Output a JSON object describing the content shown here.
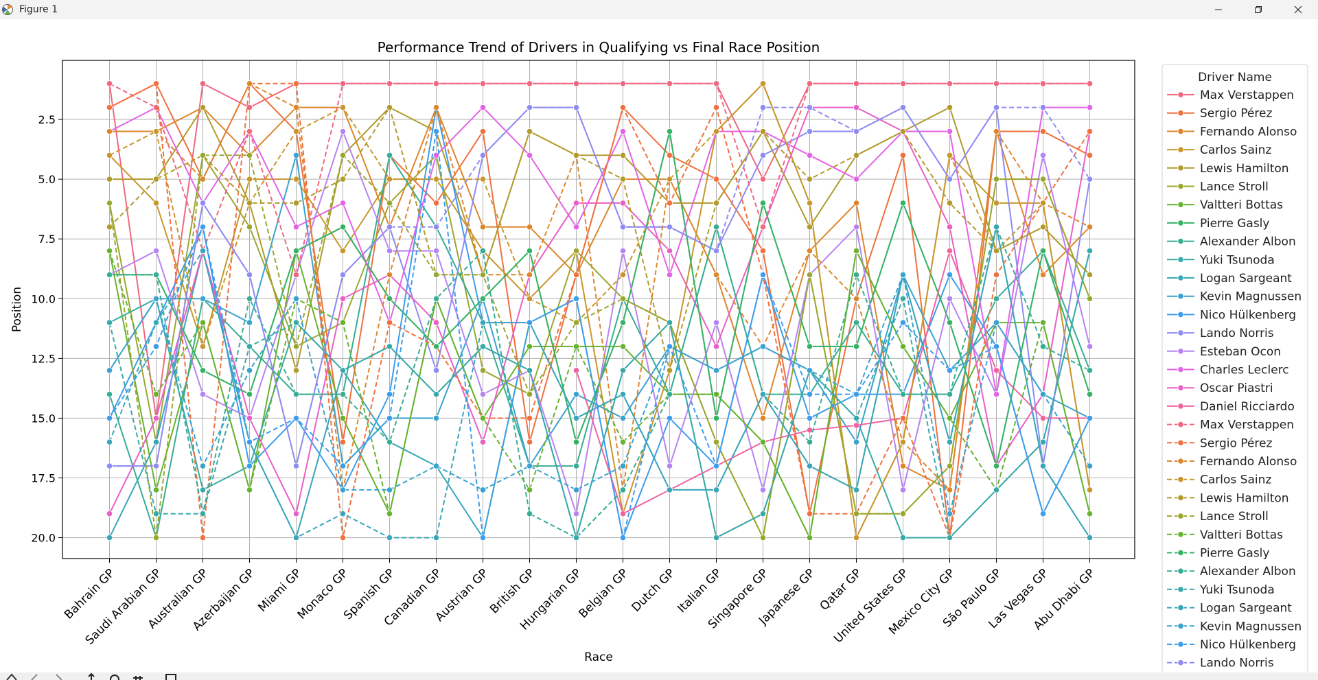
{
  "window": {
    "title": "Figure 1"
  },
  "chart_data": {
    "type": "line",
    "title": "Performance Trend of Drivers in Qualifying vs Final Race Position",
    "xlabel": "Race",
    "ylabel": "Position",
    "ylim": [
      21,
      0.3
    ],
    "y_inverted": true,
    "y_ticks": [
      "2.5",
      "5.0",
      "7.5",
      "10.0",
      "12.5",
      "15.0",
      "17.5",
      "20.0"
    ],
    "grid": true,
    "legend": {
      "title": "Driver Name",
      "placement": "outside-right"
    },
    "categories": [
      "Bahrain GP",
      "Saudi Arabian GP",
      "Australian GP",
      "Azerbaijan GP",
      "Miami GP",
      "Monaco GP",
      "Spanish GP",
      "Canadian GP",
      "Austrian GP",
      "British GP",
      "Hungarian GP",
      "Belgian GP",
      "Dutch GP",
      "Italian GP",
      "Singapore GP",
      "Japanese GP",
      "Qatar GP",
      "United States GP",
      "Mexico City GP",
      "São Paulo GP",
      "Las Vegas GP",
      "Abu Dhabi GP"
    ],
    "series": [
      {
        "name": "Max Verstappen",
        "style": "solid",
        "color": "#f0677f",
        "values": [
          1,
          15,
          1,
          2,
          1,
          1,
          1,
          1,
          1,
          1,
          1,
          1,
          1,
          1,
          5,
          1,
          1,
          1,
          1,
          1,
          1,
          1
        ]
      },
      {
        "name": "Sergio Pérez",
        "style": "solid",
        "color": "#f0703f",
        "values": [
          2,
          1,
          5,
          1,
          3,
          16,
          4,
          6,
          3,
          16,
          9,
          2,
          4,
          5,
          8,
          19,
          10,
          4,
          20,
          3,
          3,
          4
        ]
      },
      {
        "name": "Fernando Alonso",
        "style": "solid",
        "color": "#dd862c",
        "values": [
          3,
          3,
          2,
          4,
          2,
          2,
          7,
          2,
          7,
          7,
          9,
          5,
          5,
          9,
          15,
          8,
          6,
          17,
          18,
          3,
          9,
          7
        ]
      },
      {
        "name": "Carlos Sainz",
        "style": "solid",
        "color": "#c8962c",
        "values": [
          4,
          6,
          12,
          5,
          5,
          8,
          5,
          5,
          8,
          10,
          8,
          19,
          13,
          3,
          1,
          6,
          20,
          16,
          4,
          6,
          6,
          18
        ]
      },
      {
        "name": "Lewis Hamilton",
        "style": "solid",
        "color": "#b09b2c",
        "values": [
          5,
          5,
          2,
          6,
          13,
          4,
          2,
          3,
          9,
          3,
          4,
          4,
          6,
          6,
          3,
          7,
          4,
          3,
          2,
          8,
          7,
          9
        ]
      },
      {
        "name": "Lance Stroll",
        "style": "solid",
        "color": "#9aa72e",
        "values": [
          6,
          16,
          4,
          7,
          12,
          11,
          6,
          4,
          13,
          14,
          8,
          10,
          11,
          16,
          20,
          9,
          19,
          19,
          17,
          5,
          5,
          10
        ]
      },
      {
        "name": "Valtteri Bottas",
        "style": "solid",
        "color": "#67b22f",
        "values": [
          8,
          18,
          11,
          18,
          8,
          15,
          19,
          10,
          15,
          12,
          12,
          12,
          14,
          14,
          16,
          20,
          8,
          12,
          15,
          11,
          11,
          19
        ]
      },
      {
        "name": "Pierre Gasly",
        "style": "solid",
        "color": "#36b265",
        "values": [
          9,
          9,
          13,
          14,
          8,
          7,
          10,
          12,
          10,
          8,
          16,
          11,
          3,
          15,
          6,
          12,
          12,
          6,
          11,
          17,
          8,
          14
        ]
      },
      {
        "name": "Alexander Albon",
        "style": "solid",
        "color": "#36ad94",
        "values": [
          14,
          20,
          10,
          12,
          14,
          14,
          4,
          7,
          11,
          17,
          17,
          10,
          14,
          7,
          14,
          14,
          11,
          14,
          14,
          10,
          8,
          13
        ]
      },
      {
        "name": "Yuki Tsunoda",
        "style": "solid",
        "color": "#38a9a9",
        "values": [
          11,
          10,
          18,
          17,
          11,
          13,
          12,
          14,
          12,
          13,
          20,
          13,
          11,
          20,
          19,
          13,
          15,
          20,
          20,
          18,
          16,
          8
        ]
      },
      {
        "name": "Logan Sargeant",
        "style": "solid",
        "color": "#38a6b8",
        "values": [
          20,
          16,
          8,
          16,
          20,
          13,
          16,
          17,
          20,
          11,
          15,
          14,
          18,
          18,
          14,
          17,
          18,
          9,
          16,
          7,
          17,
          20
        ]
      },
      {
        "name": "Kevin Magnussen",
        "style": "solid",
        "color": "#3aa2cf",
        "values": [
          13,
          10,
          10,
          11,
          4,
          17,
          15,
          15,
          10,
          17,
          14,
          15,
          12,
          13,
          12,
          13,
          16,
          9,
          13,
          11,
          14,
          15
        ]
      },
      {
        "name": "Nico Hülkenberg",
        "style": "solid",
        "color": "#3d9cec",
        "values": [
          15,
          11,
          7,
          17,
          15,
          18,
          14,
          2,
          11,
          11,
          10,
          20,
          15,
          17,
          9,
          15,
          14,
          14,
          9,
          12,
          19,
          15
        ]
      },
      {
        "name": "Lando Norris",
        "style": "solid",
        "color": "#8e8bf2",
        "values": [
          17,
          17,
          6,
          9,
          17,
          9,
          7,
          13,
          4,
          2,
          2,
          7,
          7,
          8,
          4,
          3,
          3,
          2,
          5,
          2,
          17,
          5
        ]
      },
      {
        "name": "Esteban Ocon",
        "style": "solid",
        "color": "#b684f2",
        "values": [
          9,
          8,
          14,
          15,
          9,
          3,
          8,
          8,
          14,
          13,
          19,
          8,
          17,
          11,
          18,
          9,
          7,
          18,
          10,
          14,
          4,
          12
        ]
      },
      {
        "name": "Charles Leclerc",
        "style": "solid",
        "color": "#e363e6",
        "values": [
          3,
          2,
          6,
          3,
          7,
          6,
          11,
          4,
          2,
          4,
          7,
          3,
          9,
          3,
          3,
          4,
          5,
          3,
          3,
          14,
          2,
          2
        ]
      },
      {
        "name": "Oscar Piastri",
        "style": "solid",
        "color": "#ea5fc6",
        "values": [
          19,
          15,
          8,
          15,
          19,
          10,
          9,
          11,
          16,
          9,
          6,
          6,
          8,
          12,
          7,
          2,
          2,
          3,
          7,
          17,
          14,
          3
        ]
      },
      {
        "name": "Daniel Ricciardo",
        "style": "solid",
        "color": "#ef63a1",
        "values": [
          null,
          null,
          null,
          null,
          null,
          null,
          null,
          null,
          null,
          null,
          13,
          19,
          18,
          17,
          16,
          15.5,
          15.3,
          15,
          8,
          13,
          15,
          15
        ]
      },
      {
        "name": "Max Verstappen",
        "style": "dashed",
        "color": "#f0677f",
        "values": [
          1,
          2,
          8,
          3,
          9,
          1,
          1,
          1,
          1,
          1,
          1,
          1,
          1,
          1,
          7,
          1,
          1,
          1,
          1,
          1,
          1,
          1
        ]
      },
      {
        "name": "Sergio Pérez",
        "style": "dashed",
        "color": "#f0703f",
        "values": [
          2,
          1,
          20,
          1,
          1,
          20,
          11,
          12,
          15,
          15,
          9,
          2,
          6,
          2,
          9,
          19,
          19,
          15,
          20,
          9,
          6,
          3
        ]
      },
      {
        "name": "Fernando Alonso",
        "style": "dashed",
        "color": "#dd862c",
        "values": [
          3,
          3,
          5,
          1,
          2,
          18,
          9,
          2,
          9,
          9,
          4,
          18,
          5,
          9,
          12,
          8,
          10,
          16,
          18,
          3,
          6,
          7
        ]
      },
      {
        "name": "Carlos Sainz",
        "style": "dashed",
        "color": "#c8962c",
        "values": [
          4,
          3,
          12,
          6,
          3,
          2,
          5,
          5,
          5,
          10,
          11,
          9,
          5,
          3,
          1,
          6,
          20,
          16,
          4,
          8,
          6,
          18
        ]
      },
      {
        "name": "Lewis Hamilton",
        "style": "dashed",
        "color": "#b09b2c",
        "values": [
          7,
          5,
          4,
          6,
          6,
          5,
          2,
          9,
          9,
          3,
          4,
          5,
          13,
          6,
          3,
          5,
          4,
          3,
          6,
          8,
          7,
          9
        ]
      },
      {
        "name": "Lance Stroll",
        "style": "dashed",
        "color": "#9aa72e",
        "values": [
          6,
          20,
          4,
          4,
          12,
          4,
          6,
          9,
          9,
          14,
          11,
          10,
          11,
          16,
          20,
          9,
          19,
          19,
          17,
          5,
          5,
          10
        ]
      },
      {
        "name": "Valtteri Bottas",
        "style": "dashed",
        "color": "#67b22f",
        "values": [
          8,
          14,
          11,
          18,
          10,
          11,
          19,
          10,
          15,
          18,
          12,
          16,
          14,
          14,
          16,
          20,
          8,
          12,
          15,
          18,
          11,
          19
        ]
      },
      {
        "name": "Pierre Gasly",
        "style": "dashed",
        "color": "#36b265",
        "values": [
          9,
          9,
          13,
          14,
          8,
          7,
          10,
          12,
          10,
          8,
          16,
          11,
          3,
          15,
          6,
          12,
          12,
          6,
          11,
          17,
          8,
          14
        ]
      },
      {
        "name": "Alexander Albon",
        "style": "dashed",
        "color": "#36ad94",
        "values": [
          9,
          9,
          19,
          10,
          14,
          14,
          16,
          10,
          8,
          19,
          20,
          18,
          14,
          7,
          14,
          16,
          9,
          14,
          14,
          7,
          12,
          13
        ]
      },
      {
        "name": "Yuki Tsunoda",
        "style": "dashed",
        "color": "#38a9a9",
        "values": [
          11,
          19,
          19,
          12,
          11,
          13,
          12,
          14,
          12,
          13,
          20,
          13,
          11,
          20,
          19,
          13,
          15,
          10,
          20,
          18,
          16,
          8
        ]
      },
      {
        "name": "Logan Sargeant",
        "style": "dashed",
        "color": "#38a6b8",
        "values": [
          16,
          11,
          8,
          16,
          20,
          19,
          20,
          20,
          11,
          11,
          15,
          14,
          18,
          18,
          14,
          17,
          18,
          9,
          16,
          7,
          17,
          20
        ]
      },
      {
        "name": "Kevin Magnussen",
        "style": "dashed",
        "color": "#3aa2cf",
        "values": [
          13,
          10,
          17,
          13,
          10,
          18,
          18,
          17,
          18,
          17,
          18,
          17,
          12,
          13,
          12,
          13,
          14,
          9,
          19,
          11,
          14,
          17
        ]
      },
      {
        "name": "Nico Hülkenberg",
        "style": "dashed",
        "color": "#3d9cec",
        "values": [
          15,
          12,
          7,
          16,
          15,
          17,
          15,
          3,
          20,
          11,
          10,
          20,
          12,
          17,
          9,
          14,
          14,
          11,
          13,
          12,
          19,
          15
        ]
      },
      {
        "name": "Lando Norris",
        "style": "dashed",
        "color": "#8e8bf2",
        "values": [
          17,
          17,
          6,
          9,
          17,
          9,
          7,
          7,
          4,
          2,
          2,
          7,
          7,
          8,
          2,
          2,
          3,
          2,
          5,
          2,
          2,
          5
        ]
      }
    ]
  }
}
